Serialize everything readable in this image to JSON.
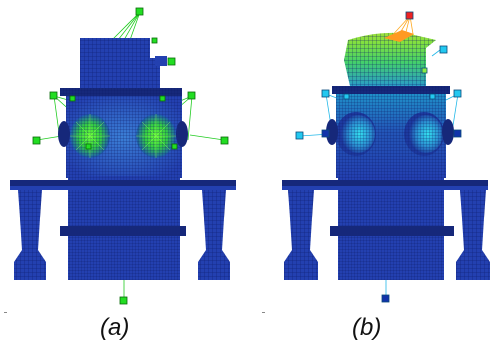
{
  "panels": [
    {
      "caption": "(a)",
      "marker_color": "#22dd22",
      "contour": "green-center"
    },
    {
      "caption": "(b)",
      "marker_color": "#22c8f0",
      "contour": "blue-green-red-top"
    }
  ],
  "colors": {
    "mesh_dark": "#1a2f8f",
    "mesh_base": "#2340b0",
    "mesh_light": "#3154c8",
    "green_hot": "#44dd33",
    "cyan": "#22c8f0",
    "red": "#ee2222",
    "node_blue": "#1133aa"
  }
}
